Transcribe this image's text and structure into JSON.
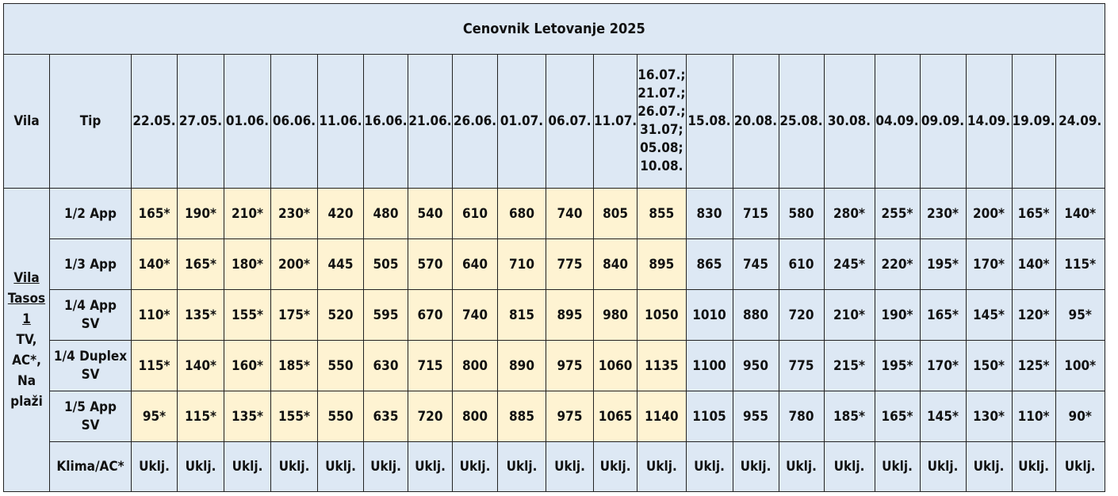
{
  "title": "Cenovnik Letovanje 2025",
  "header": {
    "vila": "Vila",
    "tip": "Tip",
    "dates": [
      "22.05.",
      "27.05.",
      "01.06.",
      "06.06.",
      "11.06.",
      "16.06.",
      "21.06.",
      "26.06.",
      "01.07.",
      "06.07.",
      "11.07.",
      "16.07.; 21.07.; 26.07.; 31.07; 05.08; 10.08.",
      "15.08.",
      "20.08.",
      "25.08.",
      "30.08.",
      "04.09.",
      "09.09.",
      "14.09.",
      "19.09.",
      "24.09."
    ]
  },
  "vila_label": {
    "line1": "Vila",
    "line2": "Tasos",
    "line3": "1",
    "line4": "TV,",
    "line5": "AC*,",
    "line6": "Na",
    "line7": "plaži"
  },
  "rows": [
    {
      "tip": "1/2 App",
      "values": [
        "165*",
        "190*",
        "210*",
        "230*",
        "420",
        "480",
        "540",
        "610",
        "680",
        "740",
        "805",
        "855",
        "830",
        "715",
        "580",
        "280*",
        "255*",
        "230*",
        "200*",
        "165*",
        "140*"
      ]
    },
    {
      "tip": "1/3 App",
      "values": [
        "140*",
        "165*",
        "180*",
        "200*",
        "445",
        "505",
        "570",
        "640",
        "710",
        "775",
        "840",
        "895",
        "865",
        "745",
        "610",
        "245*",
        "220*",
        "195*",
        "170*",
        "140*",
        "115*"
      ]
    },
    {
      "tip": "1/4 App SV",
      "values": [
        "110*",
        "135*",
        "155*",
        "175*",
        "520",
        "595",
        "670",
        "740",
        "815",
        "895",
        "980",
        "1050",
        "1010",
        "880",
        "720",
        "210*",
        "190*",
        "165*",
        "145*",
        "120*",
        "95*"
      ]
    },
    {
      "tip": "1/4 Duplex SV",
      "values": [
        "115*",
        "140*",
        "160*",
        "185*",
        "550",
        "630",
        "715",
        "800",
        "890",
        "975",
        "1060",
        "1135",
        "1100",
        "950",
        "775",
        "215*",
        "195*",
        "170*",
        "150*",
        "125*",
        "100*"
      ]
    },
    {
      "tip": "1/5 App SV",
      "values": [
        "95*",
        "115*",
        "135*",
        "155*",
        "550",
        "635",
        "720",
        "800",
        "885",
        "975",
        "1065",
        "1140",
        "1105",
        "955",
        "780",
        "185*",
        "165*",
        "145*",
        "130*",
        "110*",
        "90*"
      ]
    }
  ],
  "ac_row": {
    "tip": "Klima/AC*",
    "values": [
      "Uklj.",
      "Uklj.",
      "Uklj.",
      "Uklj.",
      "Uklj.",
      "Uklj.",
      "Uklj.",
      "Uklj.",
      "Uklj.",
      "Uklj.",
      "Uklj.",
      "Uklj.",
      "Uklj.",
      "Uklj.",
      "Uklj.",
      "Uklj.",
      "Uklj.",
      "Uklj.",
      "Uklj.",
      "Uklj.",
      "Uklj."
    ]
  },
  "colors": {
    "header_bg": "#dde8f4",
    "price_bg": "#fef3d2",
    "border": "#222222"
  }
}
